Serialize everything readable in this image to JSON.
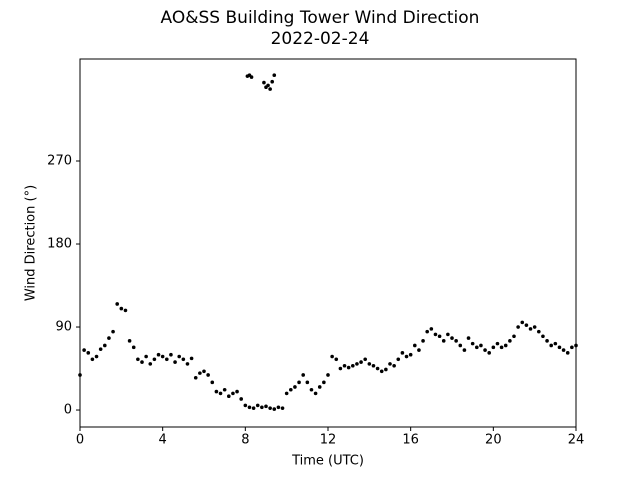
{
  "chart_data": {
    "type": "scatter",
    "title": "AO&SS Building Tower Wind Direction",
    "subtitle": "2022-02-24",
    "x_label": "Time (UTC)",
    "y_label": "Wind Direction (°)",
    "color": "#000000",
    "xlim": [
      0,
      24
    ],
    "xticks": [
      0,
      4,
      8,
      12,
      16,
      20,
      24
    ],
    "ylim": [
      -18.4,
      380.6
    ],
    "yticks": [
      0,
      90,
      180,
      270
    ],
    "grid": false,
    "x": [
      0,
      0.2,
      0.4,
      0.6,
      0.8,
      1.0,
      1.2,
      1.4,
      1.6,
      1.8,
      2.0,
      2.2,
      2.4,
      2.6,
      2.8,
      3.0,
      3.2,
      3.4,
      3.6,
      3.8,
      4.0,
      4.2,
      4.4,
      4.6,
      4.8,
      5.0,
      5.2,
      5.4,
      5.6,
      5.8,
      6.0,
      6.2,
      6.4,
      6.6,
      6.8,
      7.0,
      7.2,
      7.4,
      7.6,
      7.8,
      8.0,
      8.2,
      8.4,
      8.6,
      8.8,
      9.0,
      9.2,
      9.4,
      9.6,
      9.8,
      10.0,
      10.2,
      10.4,
      10.6,
      10.8,
      11.0,
      11.2,
      11.4,
      11.6,
      11.8,
      12.0,
      12.2,
      12.4,
      12.6,
      12.8,
      13.0,
      13.2,
      13.4,
      13.6,
      13.8,
      14.0,
      14.2,
      14.4,
      14.6,
      14.8,
      15.0,
      15.2,
      15.4,
      15.6,
      15.8,
      16.0,
      16.2,
      16.4,
      16.6,
      16.8,
      17.0,
      17.2,
      17.4,
      17.6,
      17.8,
      18.0,
      18.2,
      18.4,
      18.6,
      18.8,
      19.0,
      19.2,
      19.4,
      19.6,
      19.8,
      20.0,
      20.2,
      20.4,
      20.6,
      20.8,
      21.0,
      21.2,
      21.4,
      21.6,
      21.8,
      22.0,
      22.2,
      22.4,
      22.6,
      22.8,
      23.0,
      23.2,
      23.4,
      23.6,
      23.8,
      24.0,
      8.1,
      8.2,
      8.3,
      8.9,
      9.0,
      9.1,
      9.2,
      9.3,
      9.4
    ],
    "values": [
      38,
      65,
      62,
      55,
      58,
      66,
      70,
      78,
      85,
      115,
      110,
      108,
      75,
      68,
      55,
      52,
      58,
      50,
      55,
      60,
      58,
      55,
      60,
      52,
      58,
      55,
      50,
      56,
      35,
      40,
      42,
      38,
      30,
      20,
      18,
      22,
      15,
      18,
      20,
      12,
      5,
      3,
      2,
      5,
      3,
      4,
      2,
      1,
      3,
      2,
      18,
      22,
      25,
      30,
      38,
      30,
      22,
      18,
      25,
      30,
      38,
      58,
      55,
      45,
      48,
      46,
      48,
      50,
      52,
      55,
      50,
      48,
      45,
      42,
      44,
      50,
      48,
      55,
      62,
      58,
      60,
      70,
      65,
      75,
      85,
      88,
      82,
      80,
      75,
      82,
      78,
      75,
      70,
      65,
      78,
      72,
      68,
      70,
      65,
      62,
      68,
      72,
      68,
      70,
      75,
      80,
      90,
      95,
      92,
      88,
      90,
      85,
      80,
      75,
      70,
      72,
      68,
      65,
      62,
      68,
      70,
      362,
      363,
      361,
      355,
      350,
      352,
      348,
      356,
      363
    ]
  }
}
